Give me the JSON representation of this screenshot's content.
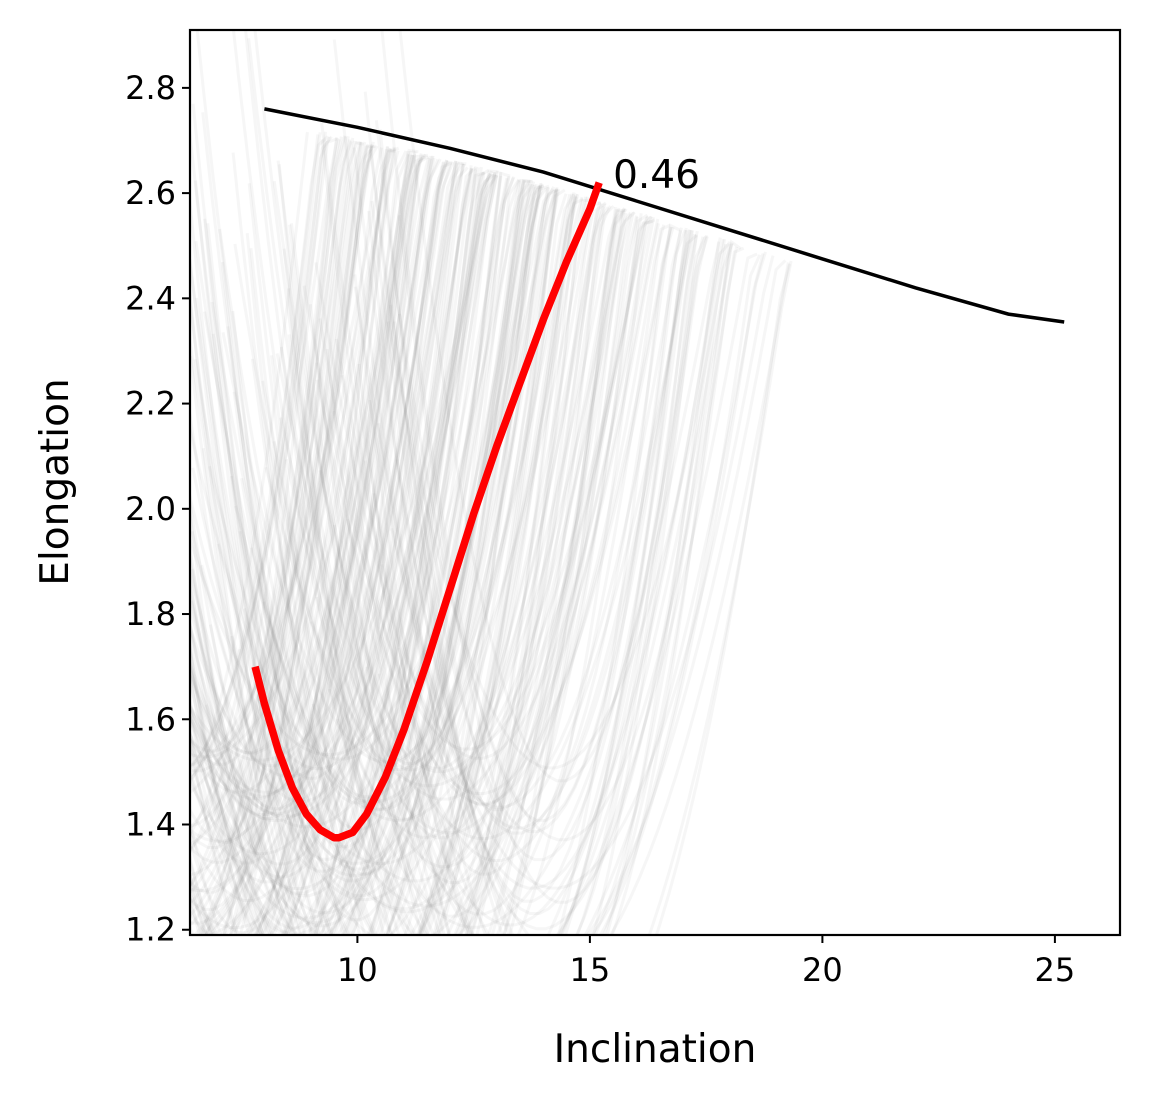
{
  "chart_data": {
    "type": "line",
    "xlabel": "Inclination",
    "ylabel": "Elongation",
    "xlim": [
      6.4,
      26.4
    ],
    "ylim": [
      1.19,
      2.91
    ],
    "xticks": [
      "10",
      "15",
      "20",
      "25"
    ],
    "yticks": [
      "1.2",
      "1.4",
      "1.6",
      "1.8",
      "2.0",
      "2.2",
      "2.4",
      "2.6",
      "2.8"
    ],
    "grid": false,
    "legend": "none",
    "colors": {
      "highlight": "#ff0000",
      "envelope": "#000000",
      "background_curves": "#808080"
    },
    "background_curves": {
      "description_of_family": "ensemble of parabola-shaped trajectories",
      "count": 260,
      "curve_shape": "y = min_elongation + k*(x - min_inclination)^2, capped by envelope",
      "min_inclination_range": [
        5.8,
        14.5
      ],
      "min_elongation_range": [
        0.9,
        1.55
      ],
      "opacity": 0.07
    },
    "series": [
      {
        "role": "highlight",
        "x": [
          7.8,
          8.0,
          8.3,
          8.6,
          8.9,
          9.2,
          9.5,
          9.6,
          9.9,
          10.2,
          10.6,
          11.0,
          11.5,
          12.0,
          12.5,
          13.0,
          13.5,
          14.0,
          14.5,
          15.0,
          15.2
        ],
        "y": [
          1.7,
          1.63,
          1.54,
          1.47,
          1.42,
          1.39,
          1.375,
          1.375,
          1.385,
          1.42,
          1.49,
          1.58,
          1.71,
          1.85,
          1.99,
          2.12,
          2.24,
          2.36,
          2.47,
          2.57,
          2.62
        ]
      },
      {
        "role": "envelope",
        "x": [
          8.0,
          10.0,
          12.0,
          14.0,
          16.0,
          18.0,
          20.0,
          22.0,
          24.0,
          25.2
        ],
        "y": [
          2.76,
          2.725,
          2.685,
          2.64,
          2.585,
          2.53,
          2.475,
          2.42,
          2.37,
          2.355
        ]
      }
    ],
    "annotations": [
      {
        "text": "0.46",
        "x": 15.5,
        "y": 2.61
      }
    ]
  }
}
